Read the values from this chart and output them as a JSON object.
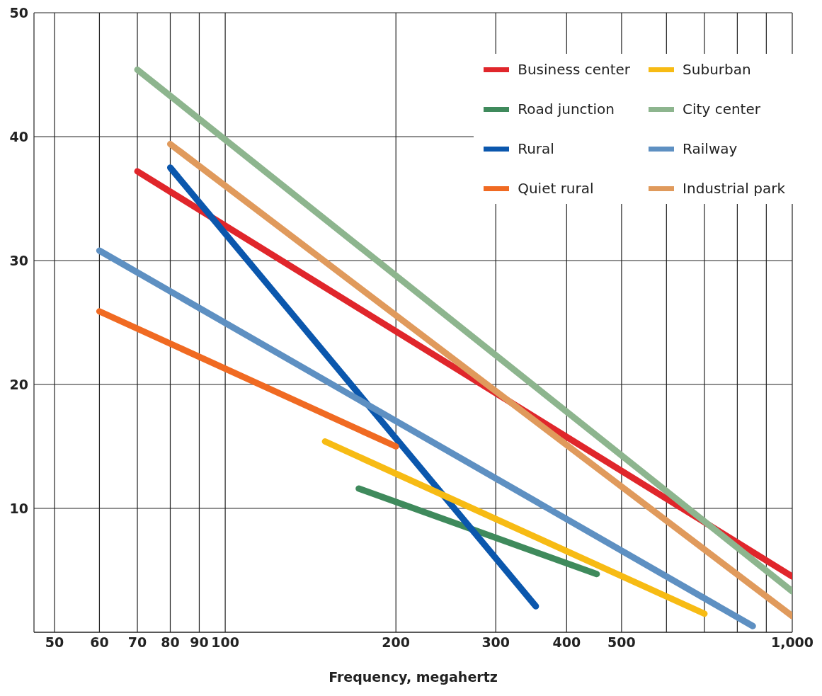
{
  "chart_data": {
    "type": "line",
    "xlabel": "Frequency, megahertz",
    "log": "x",
    "xlim": [
      46,
      1000
    ],
    "xticks": [
      50,
      60,
      70,
      80,
      90,
      100,
      200,
      300,
      400,
      500,
      {
        "value": 600,
        "label": null
      },
      {
        "value": 700,
        "label": null
      },
      {
        "value": 800,
        "label": null
      },
      {
        "value": 900,
        "label": null
      },
      {
        "value": 1000,
        "label": "1,000"
      }
    ],
    "ylim": [
      0,
      50
    ],
    "yticks": [
      {
        "value": 0,
        "label": null
      },
      10,
      20,
      30,
      40,
      50
    ],
    "grid": true,
    "legend": "top right",
    "marker": "none",
    "line_style": "solid",
    "series": [
      {
        "name": "Business center",
        "color": "#e0262b",
        "x": [
          70,
          1000
        ],
        "values": [
          37.2,
          4.5
        ]
      },
      {
        "name": "Road junction",
        "color": "#3f8a5c",
        "x": [
          172,
          452
        ],
        "values": [
          11.6,
          4.7
        ]
      },
      {
        "name": "Rural",
        "color": "#0b57ad",
        "x": [
          80,
          353
        ],
        "values": [
          37.5,
          2.1
        ]
      },
      {
        "name": "Quiet rural",
        "color": "#f06a22",
        "x": [
          60,
          200
        ],
        "values": [
          25.9,
          15.0
        ]
      },
      {
        "name": "Suburban",
        "color": "#f7bb14",
        "x": [
          150,
          700
        ],
        "values": [
          15.4,
          1.5
        ]
      },
      {
        "name": "City center",
        "color": "#8db58e",
        "x": [
          70,
          1000
        ],
        "values": [
          45.4,
          3.3
        ]
      },
      {
        "name": "Railway",
        "color": "#5e90c2",
        "x": [
          60,
          852
        ],
        "values": [
          30.8,
          0.5
        ]
      },
      {
        "name": "Industrial park",
        "color": "#e09a5c",
        "x": [
          80,
          1000
        ],
        "values": [
          39.4,
          1.3
        ]
      }
    ]
  }
}
